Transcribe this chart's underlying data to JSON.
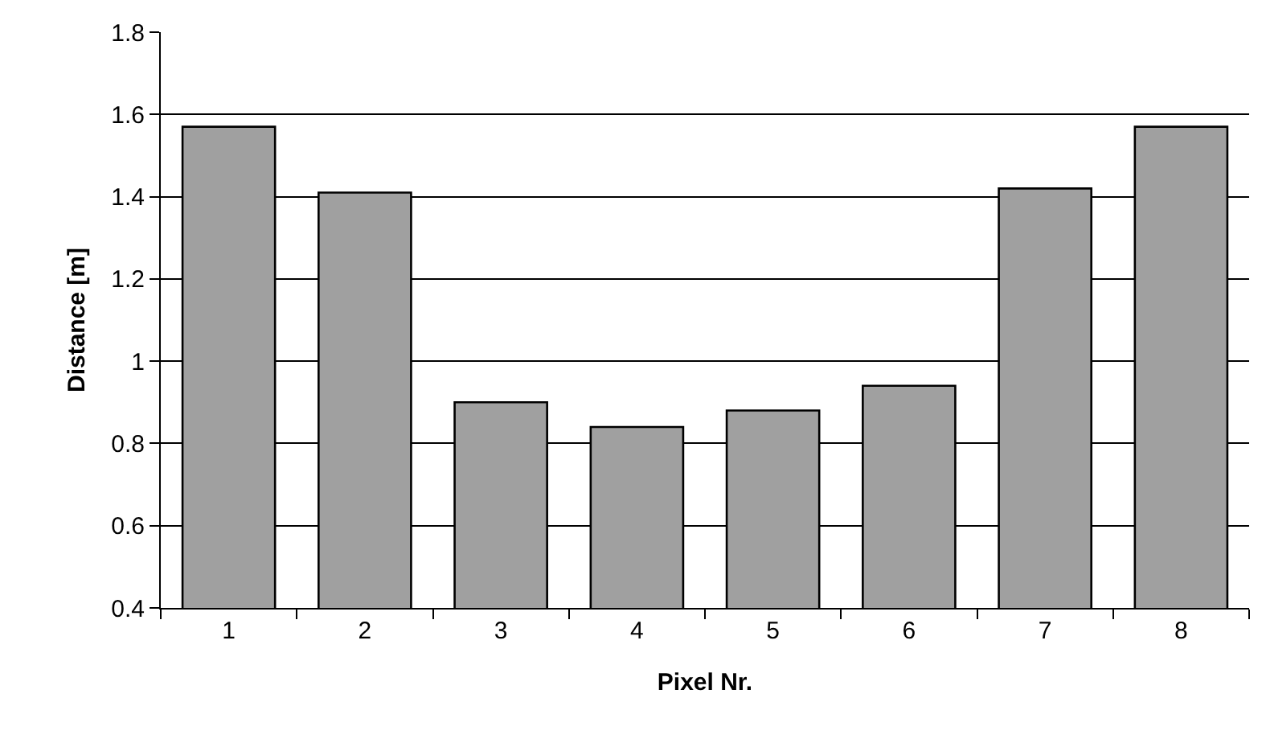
{
  "chart_data": {
    "type": "bar",
    "xlabel": "Pixel Nr.",
    "ylabel": "Distance [m]",
    "categories": [
      "1",
      "2",
      "3",
      "4",
      "5",
      "6",
      "7",
      "8"
    ],
    "values": [
      1.57,
      1.41,
      0.9,
      0.84,
      0.88,
      0.94,
      1.42,
      1.57
    ],
    "color": "#a0a0a0",
    "ylim": [
      0.4,
      1.8
    ],
    "yticks": [
      0.4,
      0.6,
      0.8,
      1,
      1.2,
      1.4,
      1.6,
      1.8
    ],
    "grid": "y",
    "legend": false
  }
}
